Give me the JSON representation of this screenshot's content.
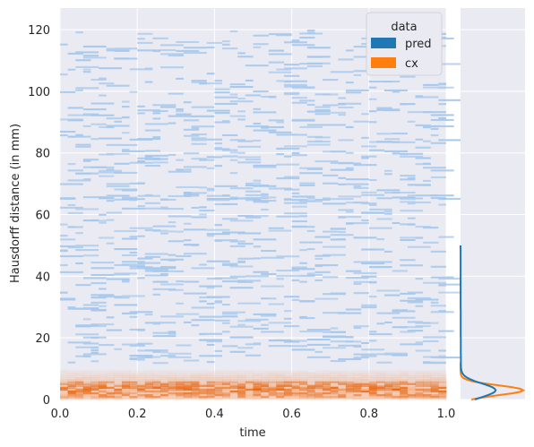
{
  "chart_data": {
    "type": "heatmap",
    "xlabel": "time",
    "ylabel": "Hausdorff distance (in mm)",
    "xlim": [
      0.0,
      1.0
    ],
    "ylim": [
      0,
      127
    ],
    "x_ticks": [
      "0.0",
      "0.2",
      "0.4",
      "0.6",
      "0.8",
      "1.0"
    ],
    "y_ticks": [
      "0",
      "20",
      "40",
      "60",
      "80",
      "100",
      "120"
    ],
    "grid": true,
    "legend": {
      "title": "data",
      "placement": "top-right",
      "entries": [
        {
          "name": "pred",
          "color": "#1f77b4"
        },
        {
          "name": "cx",
          "color": "#ff7f0e"
        }
      ]
    },
    "colors": {
      "background": "#eaeaf2",
      "pred_fill": "#a6c8ec",
      "cx_dark": "#f0660a",
      "cx_light": "#f8b387",
      "pred_line": "#1f77b4",
      "cx_line": "#ff7f0e"
    },
    "cx_band_mm": [
      0,
      10
    ],
    "cx_peak_mm": 3,
    "marginal": {
      "side": "right",
      "pred_peak_mm": 3,
      "cx_peak_mm": 3,
      "pred_tail_max_mm": 50
    }
  }
}
